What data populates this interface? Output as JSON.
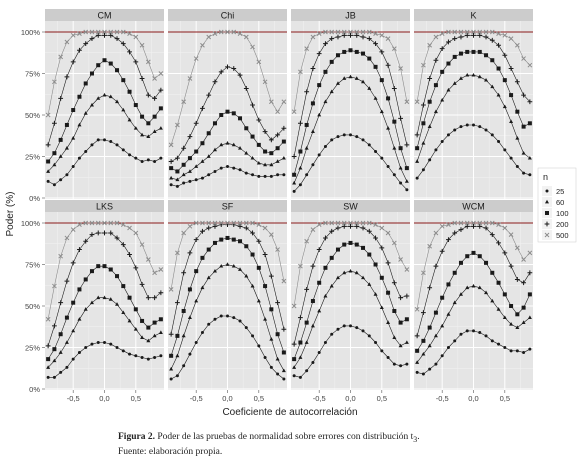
{
  "chart_data": {
    "type": "line",
    "panels": [
      "CM",
      "Chi",
      "JB",
      "K",
      "LKS",
      "SF",
      "SW",
      "WCM"
    ],
    "x_ticks": [
      "-0,5",
      "0,0",
      "0,5"
    ],
    "y_ticks": [
      "0%",
      "25%",
      "50%",
      "75%",
      "100%"
    ],
    "xlabel": "Coeficiente de autocorrelación",
    "ylabel": "Poder (%)",
    "ylim": [
      0,
      100
    ],
    "xlim": [
      -0.95,
      0.95
    ],
    "grid": true,
    "reference_line": {
      "y": 100,
      "color": "#8b1a1a"
    },
    "legend": {
      "title": "n",
      "position": "right",
      "entries": [
        "25",
        "60",
        "100",
        "200",
        "500"
      ]
    },
    "x": [
      -0.9,
      -0.8,
      -0.7,
      -0.6,
      -0.5,
      -0.4,
      -0.3,
      -0.2,
      -0.1,
      0.0,
      0.1,
      0.2,
      0.3,
      0.4,
      0.5,
      0.6,
      0.7,
      0.8,
      0.9
    ],
    "panel_series": {
      "CM": [
        {
          "name": "25",
          "values": [
            10,
            8,
            11,
            14,
            19,
            24,
            28,
            32,
            35,
            35,
            34,
            32,
            29,
            26,
            24,
            22,
            23,
            22,
            24
          ]
        },
        {
          "name": "60",
          "values": [
            16,
            20,
            25,
            30,
            36,
            44,
            51,
            56,
            60,
            62,
            61,
            58,
            53,
            47,
            42,
            38,
            37,
            40,
            42
          ]
        },
        {
          "name": "100",
          "values": [
            22,
            27,
            35,
            44,
            53,
            61,
            69,
            75,
            80,
            83,
            81,
            77,
            71,
            64,
            56,
            49,
            45,
            49,
            54
          ]
        },
        {
          "name": "200",
          "values": [
            32,
            45,
            60,
            73,
            82,
            89,
            93,
            96,
            98,
            98,
            98,
            96,
            93,
            88,
            82,
            72,
            62,
            60,
            65
          ]
        },
        {
          "name": "500",
          "values": [
            50,
            70,
            85,
            94,
            98,
            99,
            100,
            100,
            100,
            100,
            100,
            100,
            100,
            99,
            97,
            92,
            82,
            72,
            75
          ]
        }
      ],
      "Chi": [
        {
          "name": "25",
          "values": [
            8,
            7,
            9,
            10,
            11,
            12,
            14,
            16,
            18,
            19,
            18,
            17,
            15,
            14,
            13,
            13,
            13,
            14,
            14
          ]
        },
        {
          "name": "60",
          "values": [
            12,
            11,
            14,
            16,
            19,
            22,
            25,
            29,
            32,
            33,
            32,
            30,
            27,
            24,
            21,
            20,
            20,
            22,
            24
          ]
        },
        {
          "name": "100",
          "values": [
            18,
            16,
            20,
            24,
            28,
            33,
            39,
            45,
            50,
            52,
            51,
            48,
            42,
            37,
            32,
            28,
            27,
            30,
            34
          ]
        },
        {
          "name": "200",
          "values": [
            22,
            24,
            30,
            37,
            45,
            54,
            62,
            70,
            76,
            79,
            78,
            74,
            66,
            56,
            47,
            40,
            35,
            38,
            42
          ]
        },
        {
          "name": "500",
          "values": [
            32,
            44,
            58,
            72,
            84,
            92,
            97,
            99,
            100,
            100,
            100,
            99,
            97,
            91,
            82,
            70,
            58,
            52,
            58
          ]
        }
      ],
      "JB": [
        {
          "name": "25",
          "values": [
            4,
            8,
            14,
            20,
            26,
            31,
            35,
            37,
            38,
            38,
            37,
            35,
            32,
            28,
            24,
            19,
            14,
            9,
            5
          ]
        },
        {
          "name": "60",
          "values": [
            9,
            18,
            30,
            40,
            50,
            58,
            64,
            69,
            72,
            73,
            72,
            70,
            66,
            60,
            52,
            42,
            30,
            18,
            10
          ]
        },
        {
          "name": "100",
          "values": [
            14,
            28,
            44,
            57,
            68,
            76,
            82,
            86,
            88,
            89,
            88,
            87,
            84,
            79,
            71,
            60,
            46,
            30,
            18
          ]
        },
        {
          "name": "200",
          "values": [
            25,
            45,
            64,
            78,
            87,
            93,
            96,
            97,
            98,
            98,
            98,
            97,
            96,
            93,
            88,
            80,
            66,
            48,
            32
          ]
        },
        {
          "name": "500",
          "values": [
            52,
            76,
            90,
            97,
            99,
            100,
            100,
            100,
            100,
            100,
            100,
            100,
            100,
            99,
            98,
            96,
            90,
            78,
            58
          ]
        }
      ],
      "K": [
        {
          "name": "25",
          "values": [
            12,
            17,
            23,
            29,
            34,
            38,
            41,
            43,
            44,
            44,
            43,
            41,
            38,
            34,
            29,
            24,
            19,
            15,
            14
          ]
        },
        {
          "name": "60",
          "values": [
            22,
            33,
            43,
            52,
            59,
            65,
            69,
            72,
            74,
            74,
            73,
            71,
            67,
            62,
            55,
            46,
            36,
            27,
            24
          ]
        },
        {
          "name": "100",
          "values": [
            30,
            45,
            58,
            68,
            76,
            81,
            85,
            87,
            88,
            88,
            88,
            86,
            83,
            78,
            71,
            62,
            52,
            43,
            45
          ]
        },
        {
          "name": "200",
          "values": [
            38,
            56,
            72,
            83,
            90,
            94,
            96,
            97,
            98,
            98,
            98,
            97,
            95,
            92,
            86,
            78,
            70,
            62,
            58
          ]
        },
        {
          "name": "500",
          "values": [
            58,
            80,
            92,
            97,
            99,
            100,
            100,
            100,
            100,
            100,
            100,
            100,
            100,
            99,
            98,
            96,
            92,
            84,
            80
          ]
        }
      ],
      "LKS": [
        {
          "name": "25",
          "values": [
            7,
            7,
            10,
            13,
            18,
            22,
            25,
            27,
            28,
            28,
            27,
            25,
            23,
            21,
            20,
            19,
            18,
            19,
            20
          ]
        },
        {
          "name": "60",
          "values": [
            13,
            17,
            22,
            28,
            35,
            42,
            48,
            52,
            55,
            55,
            54,
            51,
            46,
            41,
            36,
            31,
            29,
            32,
            34
          ]
        },
        {
          "name": "100",
          "values": [
            18,
            24,
            33,
            43,
            52,
            60,
            66,
            71,
            74,
            74,
            72,
            68,
            62,
            55,
            48,
            41,
            37,
            40,
            42
          ]
        },
        {
          "name": "200",
          "values": [
            26,
            38,
            52,
            65,
            76,
            84,
            89,
            93,
            94,
            94,
            94,
            91,
            87,
            81,
            73,
            63,
            55,
            55,
            58
          ]
        },
        {
          "name": "500",
          "values": [
            42,
            62,
            80,
            91,
            96,
            99,
            100,
            100,
            100,
            100,
            100,
            100,
            99,
            97,
            94,
            87,
            78,
            70,
            72
          ]
        }
      ],
      "SF": [
        {
          "name": "25",
          "values": [
            6,
            8,
            14,
            21,
            28,
            34,
            39,
            42,
            44,
            44,
            43,
            41,
            37,
            32,
            26,
            19,
            13,
            9,
            6
          ]
        },
        {
          "name": "60",
          "values": [
            12,
            20,
            32,
            43,
            53,
            61,
            67,
            71,
            74,
            75,
            74,
            72,
            68,
            62,
            53,
            42,
            30,
            18,
            11
          ]
        },
        {
          "name": "100",
          "values": [
            20,
            32,
            47,
            60,
            71,
            79,
            84,
            88,
            90,
            91,
            90,
            89,
            86,
            81,
            73,
            62,
            48,
            33,
            22
          ]
        },
        {
          "name": "200",
          "values": [
            33,
            52,
            70,
            82,
            90,
            95,
            97,
            98,
            99,
            99,
            99,
            98,
            97,
            94,
            89,
            81,
            68,
            52,
            36
          ]
        },
        {
          "name": "500",
          "values": [
            60,
            82,
            94,
            98,
            100,
            100,
            100,
            100,
            100,
            100,
            100,
            100,
            100,
            100,
            99,
            97,
            93,
            84,
            65
          ]
        }
      ],
      "SW": [
        {
          "name": "25",
          "values": [
            8,
            7,
            11,
            16,
            22,
            28,
            33,
            36,
            38,
            38,
            37,
            35,
            32,
            28,
            23,
            19,
            15,
            14,
            15
          ]
        },
        {
          "name": "60",
          "values": [
            13,
            19,
            28,
            38,
            47,
            56,
            62,
            67,
            70,
            71,
            70,
            67,
            63,
            57,
            49,
            40,
            31,
            26,
            28
          ]
        },
        {
          "name": "100",
          "values": [
            18,
            28,
            40,
            53,
            64,
            73,
            79,
            84,
            87,
            88,
            87,
            85,
            81,
            75,
            67,
            58,
            47,
            40,
            42
          ]
        },
        {
          "name": "200",
          "values": [
            27,
            43,
            60,
            74,
            84,
            91,
            95,
            97,
            98,
            98,
            98,
            97,
            95,
            91,
            85,
            76,
            64,
            55,
            56
          ]
        },
        {
          "name": "500",
          "values": [
            50,
            74,
            89,
            96,
            99,
            100,
            100,
            100,
            100,
            100,
            100,
            100,
            100,
            99,
            97,
            94,
            88,
            78,
            72
          ]
        }
      ],
      "WCM": [
        {
          "name": "25",
          "values": [
            10,
            9,
            12,
            15,
            20,
            25,
            29,
            33,
            35,
            35,
            34,
            32,
            29,
            27,
            25,
            23,
            23,
            22,
            24
          ]
        },
        {
          "name": "60",
          "values": [
            16,
            21,
            26,
            32,
            38,
            45,
            52,
            57,
            61,
            62,
            61,
            58,
            53,
            48,
            43,
            39,
            37,
            40,
            43
          ]
        },
        {
          "name": "100",
          "values": [
            23,
            29,
            37,
            46,
            55,
            63,
            70,
            76,
            80,
            82,
            80,
            76,
            70,
            64,
            57,
            50,
            45,
            49,
            57
          ]
        },
        {
          "name": "200",
          "values": [
            32,
            46,
            61,
            74,
            83,
            90,
            94,
            96,
            98,
            98,
            98,
            97,
            93,
            88,
            82,
            74,
            66,
            64,
            70
          ]
        },
        {
          "name": "500",
          "values": [
            48,
            70,
            86,
            94,
            98,
            99,
            100,
            100,
            100,
            100,
            100,
            100,
            100,
            99,
            97,
            93,
            85,
            78,
            82
          ]
        }
      ]
    }
  },
  "caption": {
    "label": "Figura 2.",
    "text": "Poder de las pruebas de normalidad sobre errores con distribución t",
    "subscript": "3",
    "end": ".",
    "source": "Fuente: elaboración propia."
  },
  "colors": {
    "panel_bg": "#e5e5e5",
    "grid_major": "#ffffff",
    "grid_minor": "#f2f2f2",
    "strip_bg": "#cccccc",
    "series_line": "#1a1a1a",
    "series_500": "#8c8c8c",
    "reference_line": "#8b1a1a"
  },
  "markers": {
    "25": "dot",
    "60": "triangle",
    "100": "square",
    "200": "plus",
    "500": "cross"
  }
}
